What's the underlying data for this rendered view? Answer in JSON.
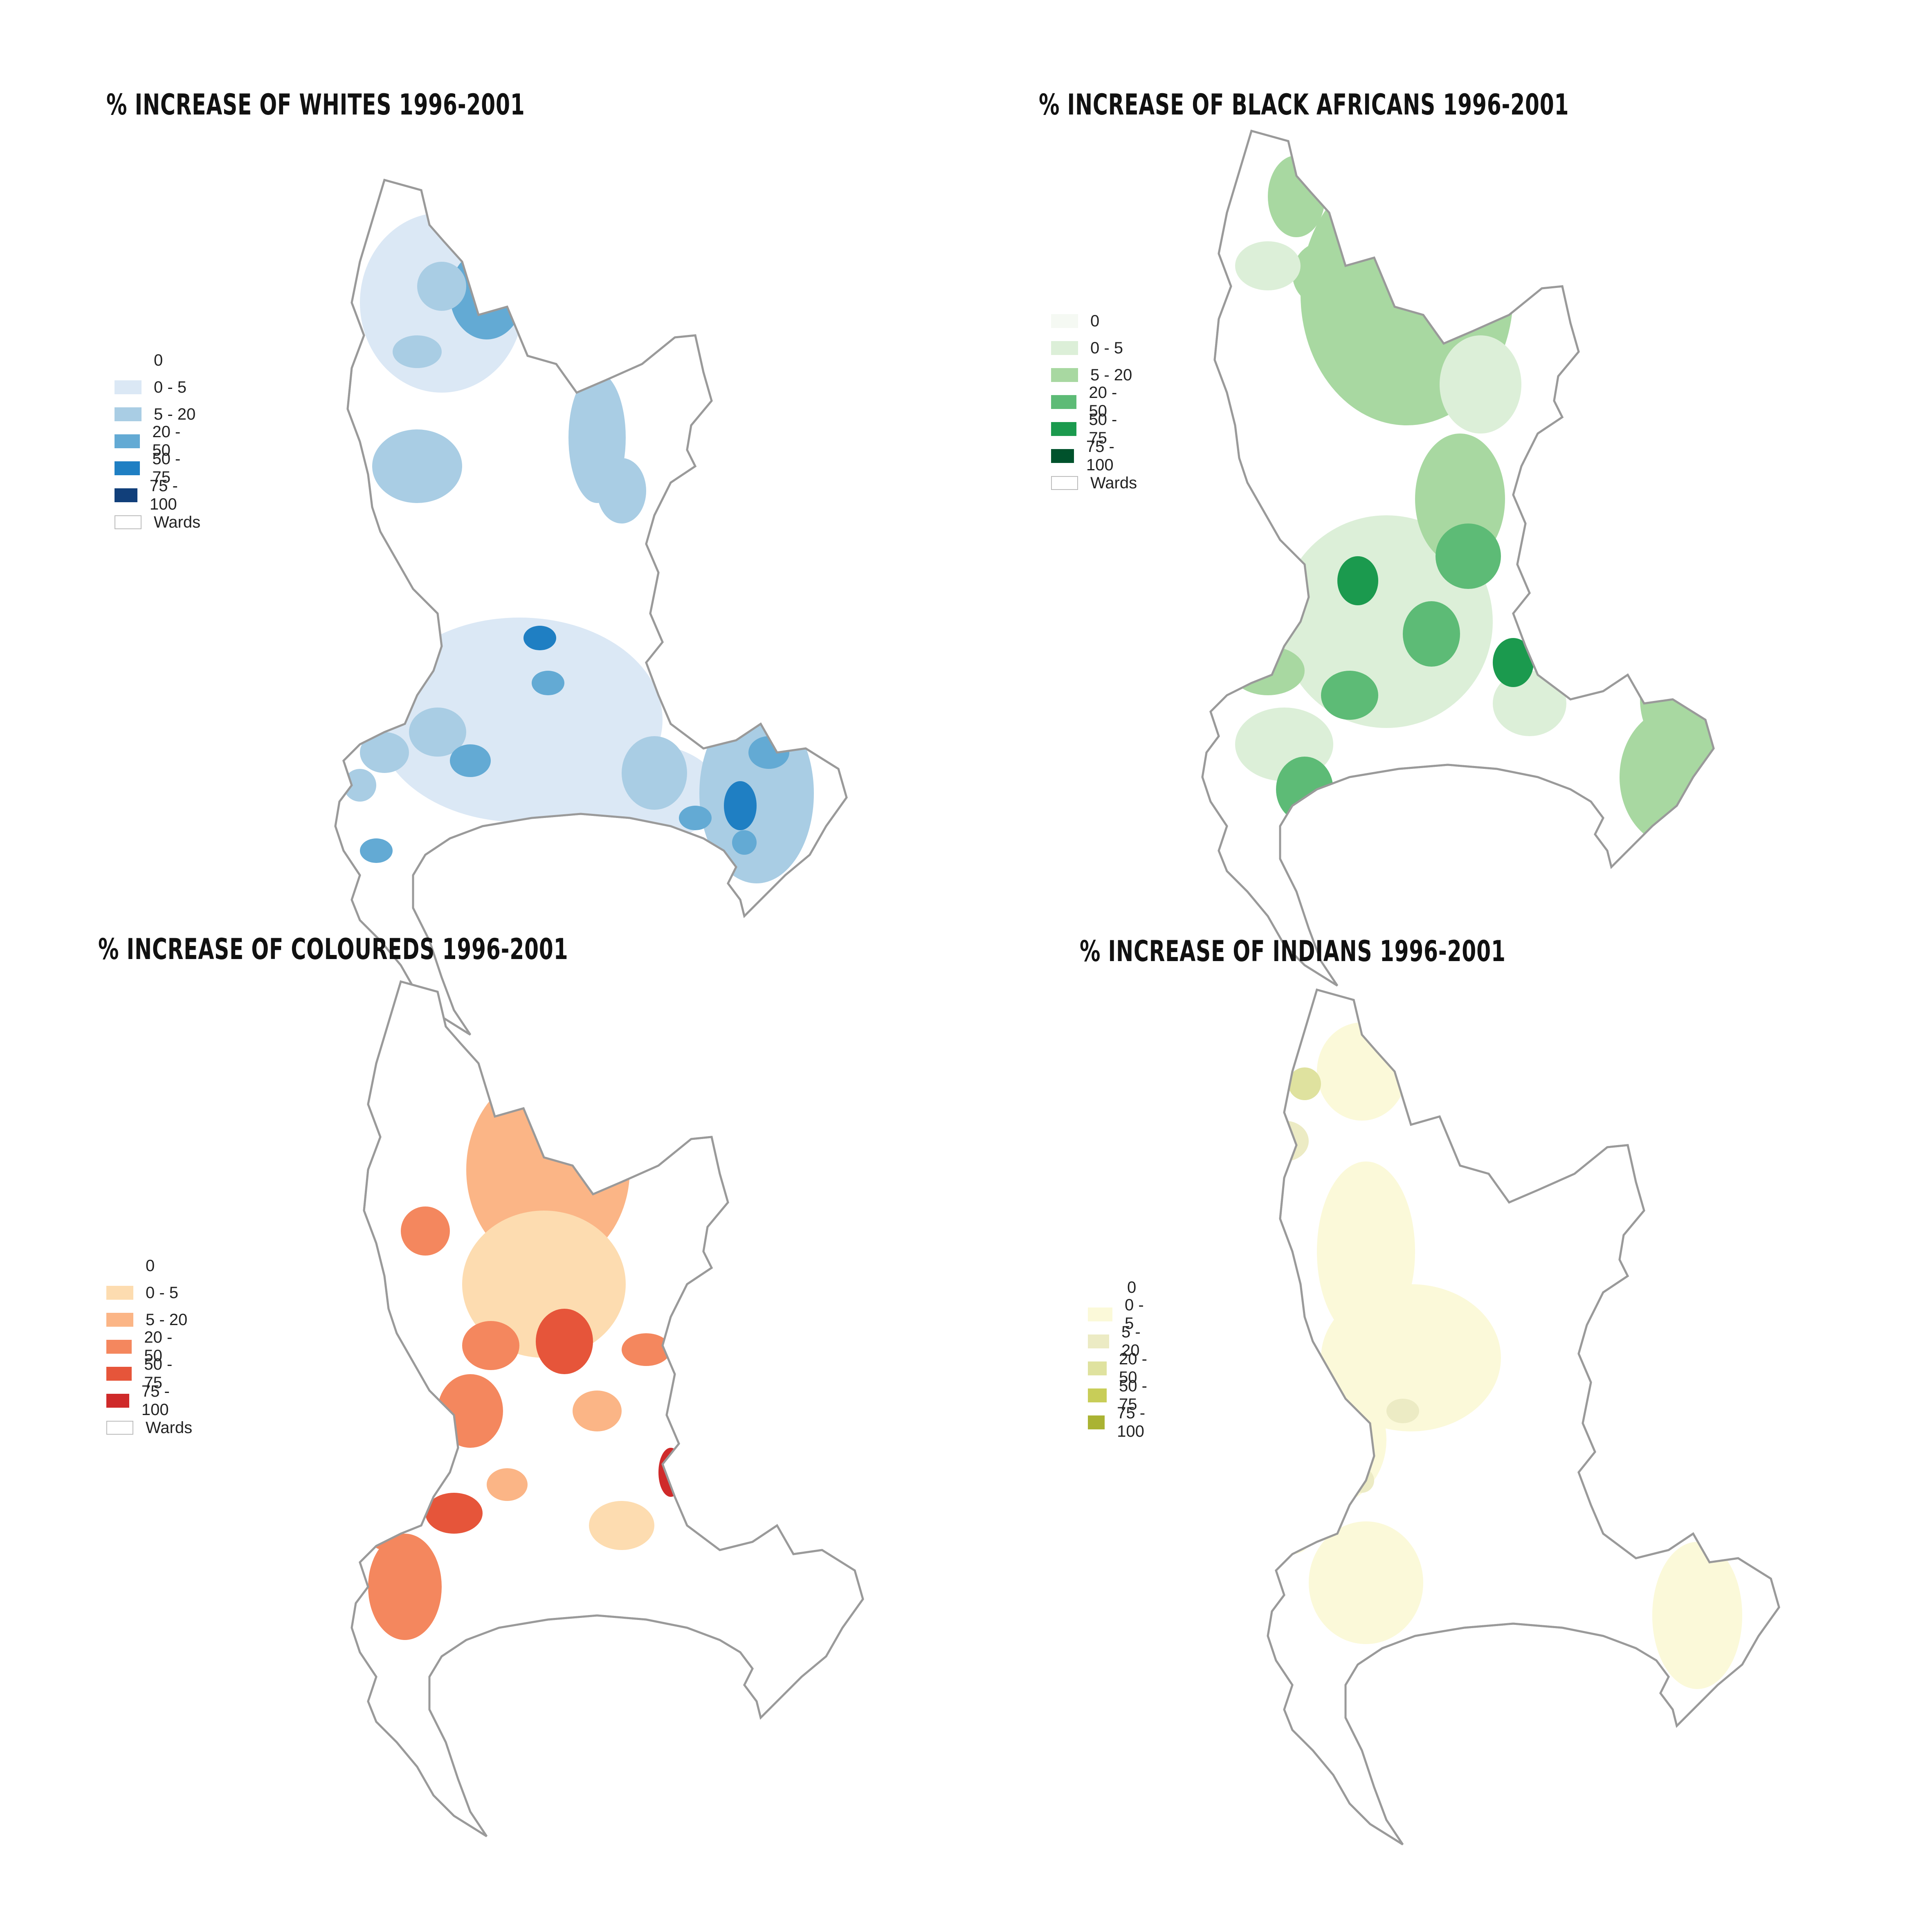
{
  "maps": [
    {
      "title": "% INCREASE OF WHITES 1996-2001",
      "legend": [
        {
          "label": "0",
          "color": "#ffffff"
        },
        {
          "label": "0 - 5",
          "color": "#dbe8f5"
        },
        {
          "label": "5 - 20",
          "color": "#a9cde4"
        },
        {
          "label": "20 - 50",
          "color": "#63aad4"
        },
        {
          "label": "50 - 75",
          "color": "#1f7fc3"
        },
        {
          "label": "75 - 100",
          "color": "#113f7a"
        },
        {
          "label": "Wards",
          "color": "#ffffff"
        }
      ]
    },
    {
      "title": "% INCREASE OF BLACK AFRICANS 1996-2001",
      "legend": [
        {
          "label": "0",
          "color": "#f5f9f3"
        },
        {
          "label": "0 - 5",
          "color": "#dcefd8"
        },
        {
          "label": "5 - 20",
          "color": "#a8d8a1"
        },
        {
          "label": "20 - 50",
          "color": "#5dbb76"
        },
        {
          "label": "50 - 75",
          "color": "#1b9a4e"
        },
        {
          "label": "75 - 100",
          "color": "#00522c"
        },
        {
          "label": "Wards",
          "color": "#ffffff"
        }
      ]
    },
    {
      "title": "% INCREASE OF COLOUREDS 1996-2001",
      "legend": [
        {
          "label": "0",
          "color": "#ffffff"
        },
        {
          "label": "0 - 5",
          "color": "#fddcb0"
        },
        {
          "label": "5 - 20",
          "color": "#fbb586"
        },
        {
          "label": "20 - 50",
          "color": "#f4875e"
        },
        {
          "label": "50 - 75",
          "color": "#e6553a"
        },
        {
          "label": "75 - 100",
          "color": "#cf2a2a"
        },
        {
          "label": "Wards",
          "color": "#ffffff"
        }
      ]
    },
    {
      "title": "% INCREASE OF INDIANS 1996-2001",
      "legend": [
        {
          "label": "0",
          "color": "#ffffff"
        },
        {
          "label": "0 - 5",
          "color": "#fbf9d9"
        },
        {
          "label": "5 - 20",
          "color": "#ecebc4"
        },
        {
          "label": "20 - 50",
          "color": "#dfe29f"
        },
        {
          "label": "50 - 75",
          "color": "#c8cd58"
        },
        {
          "label": "75 - 100",
          "color": "#aab333"
        }
      ]
    }
  ]
}
